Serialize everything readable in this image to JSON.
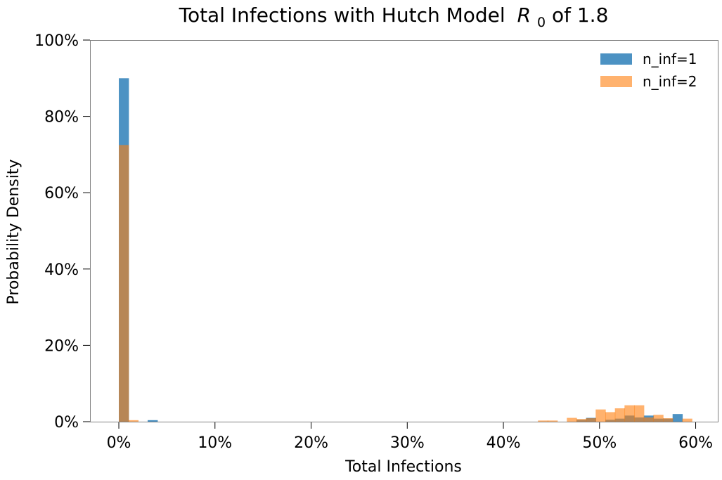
{
  "chart_data": {
    "type": "bar",
    "title": "Total Infections with Hutch Model",
    "title_symbol": "R",
    "title_symbol_subscript": "0",
    "title_suffix": " of 1.8",
    "xlabel": "Total Infections",
    "ylabel": "Probability Density",
    "xlim": [
      -3,
      62.3
    ],
    "ylim": [
      0,
      100
    ],
    "xticks": [
      0,
      10,
      20,
      30,
      40,
      50,
      60
    ],
    "xtick_labels": [
      "0%",
      "10%",
      "20%",
      "30%",
      "40%",
      "50%",
      "60%"
    ],
    "yticks": [
      0,
      20,
      40,
      60,
      80,
      100
    ],
    "ytick_labels": [
      "0%",
      "20%",
      "40%",
      "60%",
      "80%",
      "100%"
    ],
    "grid": false,
    "legend_position": "top-right",
    "bar_width": 1.05,
    "series": [
      {
        "name": "n_inf=1",
        "color": "#1f77b4",
        "opacity": 0.8,
        "bars": [
          {
            "x": 0,
            "value": 90.0
          },
          {
            "x": 3.0,
            "value": 0.4
          },
          {
            "x": 47.6,
            "value": 0.5
          },
          {
            "x": 48.6,
            "value": 1.0
          },
          {
            "x": 50.6,
            "value": 0.5
          },
          {
            "x": 51.6,
            "value": 0.8
          },
          {
            "x": 52.6,
            "value": 1.6
          },
          {
            "x": 53.6,
            "value": 1.1
          },
          {
            "x": 54.6,
            "value": 1.6
          },
          {
            "x": 55.6,
            "value": 0.8
          },
          {
            "x": 56.6,
            "value": 0.8
          },
          {
            "x": 57.6,
            "value": 2.0
          }
        ]
      },
      {
        "name": "n_inf=2",
        "color": "#ff7f0e",
        "opacity": 0.6,
        "bars": [
          {
            "x": 0,
            "value": 72.5
          },
          {
            "x": 1.0,
            "value": 0.4
          },
          {
            "x": 43.6,
            "value": 0.3
          },
          {
            "x": 44.6,
            "value": 0.3
          },
          {
            "x": 46.6,
            "value": 1.0
          },
          {
            "x": 47.6,
            "value": 0.7
          },
          {
            "x": 48.6,
            "value": 0.9
          },
          {
            "x": 49.6,
            "value": 3.2
          },
          {
            "x": 50.6,
            "value": 2.5
          },
          {
            "x": 51.6,
            "value": 3.5
          },
          {
            "x": 52.6,
            "value": 4.3
          },
          {
            "x": 53.6,
            "value": 4.3
          },
          {
            "x": 54.6,
            "value": 1.1
          },
          {
            "x": 55.6,
            "value": 1.8
          },
          {
            "x": 56.6,
            "value": 0.9
          },
          {
            "x": 58.6,
            "value": 0.8
          }
        ]
      }
    ]
  }
}
